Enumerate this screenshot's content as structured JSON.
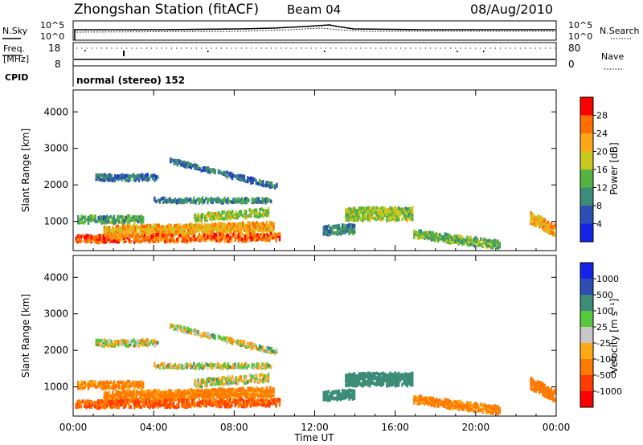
{
  "header": {
    "station_title": "Zhongshan Station (fitACF)",
    "beam": "Beam 04",
    "date": "08/Aug/2010"
  },
  "noise_panel": {
    "left_label": "N.Sky",
    "right_label": "N.Search",
    "left_ticks": [
      "10^5",
      "10^0"
    ],
    "right_ticks": [
      "10^5",
      "10^0"
    ]
  },
  "freq_panel": {
    "left_label_line1": "Freq.",
    "left_label_line2": "[MHz]",
    "left_ticks": [
      "18",
      "8"
    ],
    "right_label": "Nave",
    "right_ticks": [
      "80",
      "0"
    ],
    "cpid_label": "CPID"
  },
  "cpid_text": "normal (stereo) 152",
  "x_axis": {
    "title": "Time UT",
    "tick_labels": [
      "00:00",
      "04:00",
      "08:00",
      "12:00",
      "16:00",
      "20:00",
      "00:00"
    ],
    "tick_hours": [
      0,
      4,
      8,
      12,
      16,
      20,
      24
    ]
  },
  "power_panel": {
    "ylabel": "Slant Range [km]",
    "ytick_labels": [
      "1000",
      "2000",
      "3000",
      "4000"
    ],
    "colorbar_label": "Power [dB]",
    "colorbar_ticks": [
      "4",
      "8",
      "12",
      "16",
      "20",
      "24",
      "28"
    ],
    "colors": [
      "#1423e6",
      "#2d4fb3",
      "#3d8c78",
      "#55b441",
      "#c8c81e",
      "#ffa519",
      "#ff6e00",
      "#ff0000"
    ]
  },
  "velocity_panel": {
    "ylabel": "Slant Range [km]",
    "ytick_labels": [
      "1000",
      "2000",
      "3000",
      "4000"
    ],
    "colorbar_label": "Velocity [m s⁻¹]",
    "colorbar_ticks": [
      "1000",
      "500",
      "100",
      "25",
      "-25",
      "-100",
      "-500",
      "-1000"
    ],
    "colors": [
      "#1423e6",
      "#2d4fb3",
      "#3d8c78",
      "#55c83c",
      "#c8c8c8",
      "#ffaa14",
      "#ff7a00",
      "#ff3c00",
      "#ff0000"
    ]
  },
  "chart_data": {
    "type": "heatmap",
    "title": "Zhongshan Station (fitACF)",
    "xlabel": "Time UT",
    "ylabel": "Slant Range [km]",
    "xlim": [
      0,
      24
    ],
    "ylim": [
      200,
      4600
    ],
    "note_units": "x in hours UT, y in km",
    "series": [
      {
        "name": "Power [dB]",
        "bands": [
          {
            "t0": 1.1,
            "t1": 4.2,
            "r0": 2250,
            "r1": 2250,
            "width": 160,
            "value": 8
          },
          {
            "t0": 4.8,
            "t1": 10.1,
            "r0": 2700,
            "r1": 2000,
            "width": 130,
            "value": 8
          },
          {
            "t0": 4.0,
            "t1": 9.8,
            "r0": 1620,
            "r1": 1620,
            "width": 130,
            "value": 10
          },
          {
            "t0": 6.0,
            "t1": 9.7,
            "r0": 1150,
            "r1": 1300,
            "width": 200,
            "value": 16
          },
          {
            "t0": 0.2,
            "t1": 3.5,
            "r0": 1100,
            "r1": 1100,
            "width": 200,
            "value": 12
          },
          {
            "t0": 1.5,
            "t1": 10.0,
            "r0": 780,
            "r1": 900,
            "width": 260,
            "value": 22
          },
          {
            "t0": 0.1,
            "t1": 10.3,
            "r0": 560,
            "r1": 620,
            "width": 200,
            "value": 26
          },
          {
            "t0": 13.5,
            "t1": 16.9,
            "r0": 1250,
            "r1": 1250,
            "width": 350,
            "value": 16
          },
          {
            "t0": 12.4,
            "t1": 14.0,
            "r0": 800,
            "r1": 850,
            "width": 250,
            "value": 10
          },
          {
            "t0": 16.9,
            "t1": 21.2,
            "r0": 700,
            "r1": 400,
            "width": 220,
            "value": 14
          },
          {
            "t0": 22.7,
            "t1": 23.9,
            "r0": 1150,
            "r1": 800,
            "width": 320,
            "value": 22
          }
        ]
      },
      {
        "name": "Velocity [m s-1]",
        "bands": [
          {
            "t0": 1.1,
            "t1": 4.2,
            "r0": 2250,
            "r1": 2250,
            "width": 160,
            "value": 0
          },
          {
            "t0": 4.8,
            "t1": 10.1,
            "r0": 2700,
            "r1": 2000,
            "width": 130,
            "value": 0
          },
          {
            "t0": 4.0,
            "t1": 9.8,
            "r0": 1620,
            "r1": 1620,
            "width": 130,
            "value": 0
          },
          {
            "t0": 6.0,
            "t1": 9.7,
            "r0": 1150,
            "r1": 1300,
            "width": 200,
            "value": 0
          },
          {
            "t0": 0.2,
            "t1": 3.5,
            "r0": 1100,
            "r1": 1100,
            "width": 200,
            "value": -100
          },
          {
            "t0": 1.5,
            "t1": 10.0,
            "r0": 780,
            "r1": 900,
            "width": 260,
            "value": -100
          },
          {
            "t0": 0.1,
            "t1": 10.3,
            "r0": 560,
            "r1": 620,
            "width": 200,
            "value": -300
          },
          {
            "t0": 13.5,
            "t1": 16.9,
            "r0": 1250,
            "r1": 1250,
            "width": 350,
            "value": 150
          },
          {
            "t0": 12.4,
            "t1": 14.0,
            "r0": 800,
            "r1": 850,
            "width": 250,
            "value": 200
          },
          {
            "t0": 16.9,
            "t1": 21.2,
            "r0": 700,
            "r1": 400,
            "width": 220,
            "value": -100
          },
          {
            "t0": 22.7,
            "t1": 23.9,
            "r0": 1150,
            "r1": 800,
            "width": 320,
            "value": -200
          }
        ]
      }
    ]
  }
}
